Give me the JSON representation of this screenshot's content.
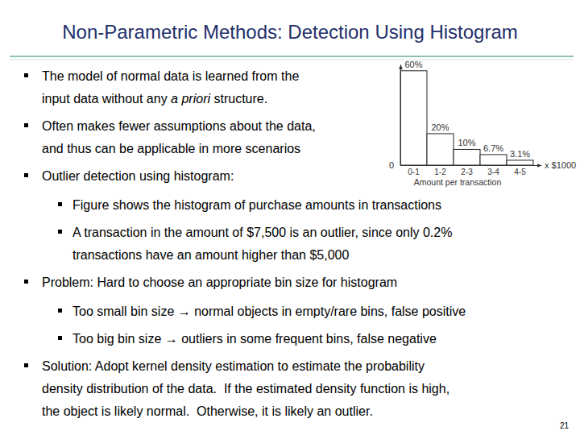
{
  "title": "Non-Parametric Methods: Detection Using Histogram",
  "bullets": [
    {
      "lines": [
        [
          {
            "text": "The model of normal data is learned from the"
          }
        ],
        [
          {
            "text": "input data without any "
          },
          {
            "text": "a priori",
            "italic": true
          },
          {
            "text": " structure."
          }
        ]
      ]
    },
    {
      "lines": [
        [
          {
            "text": "Often makes fewer assumptions about the data,"
          }
        ],
        [
          {
            "text": "and thus can be applicable in more scenarios"
          }
        ]
      ]
    },
    {
      "lines": [
        [
          {
            "text": "Outlier detection using histogram:"
          }
        ]
      ],
      "sub": [
        {
          "lines": [
            [
              {
                "text": "Figure shows the histogram of purchase amounts in transactions"
              }
            ]
          ]
        },
        {
          "lines": [
            [
              {
                "text": "A transaction in the amount of $7,500 is an outlier, since only 0.2%"
              }
            ],
            [
              {
                "text": "transactions have an amount higher than $5,000"
              }
            ]
          ]
        }
      ]
    },
    {
      "lines": [
        [
          {
            "text": "Problem: Hard to choose an appropriate bin size for histogram"
          }
        ]
      ],
      "sub": [
        {
          "lines": [
            [
              {
                "text": "Too small bin size → normal objects in empty/rare bins, false positive"
              }
            ]
          ]
        },
        {
          "lines": [
            [
              {
                "text": "Too big bin size → outliers in some frequent bins, false negative"
              }
            ]
          ]
        }
      ]
    },
    {
      "lines": [
        [
          {
            "text": "Solution: Adopt kernel density estimation to estimate the probability"
          }
        ],
        [
          {
            "text": "density distribution of the data.  If the estimated density function is high,"
          }
        ],
        [
          {
            "text": "the object is likely normal.  Otherwise, it is likely an outlier."
          }
        ]
      ]
    }
  ],
  "page_number": "21",
  "chart_data": {
    "type": "bar",
    "categories": [
      "0-1",
      "1-2",
      "2-3",
      "3-4",
      "4-5"
    ],
    "values": [
      60,
      20,
      10,
      6.7,
      3.1
    ],
    "value_labels": [
      "60%",
      "20%",
      "10%",
      "6.7%",
      "3.1%"
    ],
    "data_labels": true,
    "color": "#ffffff",
    "xlabel": "Amount per transaction",
    "annotations": [
      "x $1000"
    ],
    "ylim": [
      0,
      64
    ],
    "yticks": [
      0
    ],
    "grid": false
  }
}
